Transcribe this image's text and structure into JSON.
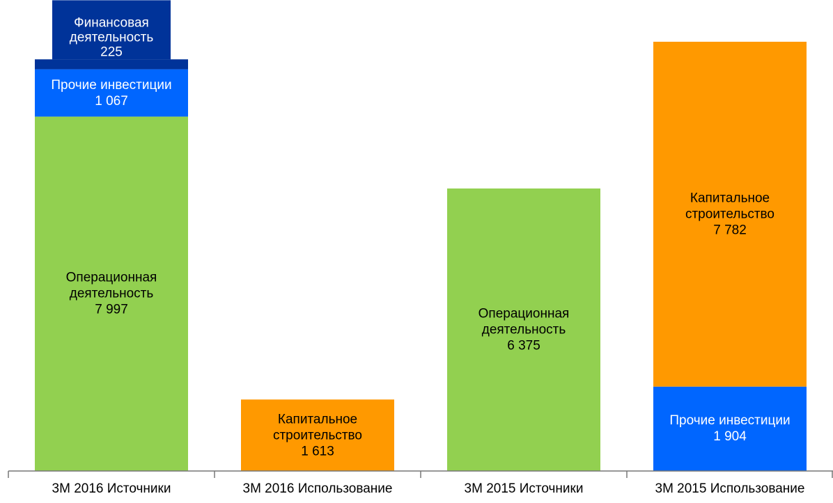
{
  "chart_data": {
    "type": "stacked_bar",
    "categories": [
      "3M 2016 Источники",
      "3M 2016 Использование",
      "3M 2015 Источники",
      "3M 2015 Использование"
    ],
    "series": [
      {
        "name": "Операционная деятельность",
        "color": "#92d050",
        "label_color": "#000000",
        "values": [
          7997,
          null,
          6375,
          null
        ],
        "value_labels": [
          "7 997",
          null,
          "6 375",
          null
        ]
      },
      {
        "name": "Прочие инвестиции",
        "color": "#0066ff",
        "label_color": "#ffffff",
        "values": [
          1067,
          null,
          null,
          1904
        ],
        "value_labels": [
          "1 067",
          null,
          null,
          "1 904"
        ]
      },
      {
        "name": "Финансовая деятельность",
        "color": "#003399",
        "label_color": "#ffffff",
        "values": [
          225,
          null,
          null,
          null
        ],
        "value_labels": [
          "225",
          null,
          null,
          null
        ]
      },
      {
        "name": "Капитальное строительство",
        "color": "#ff9900",
        "label_color": "#000000",
        "values": [
          null,
          1613,
          null,
          7782
        ],
        "value_labels": [
          null,
          "1 613",
          null,
          "7 782"
        ]
      }
    ]
  }
}
